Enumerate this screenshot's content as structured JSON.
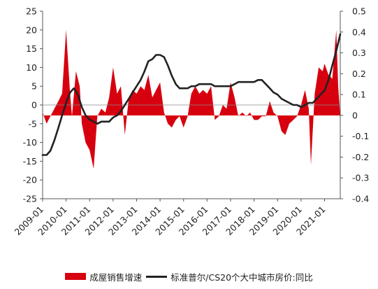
{
  "chart_data": {
    "type": "area+line",
    "title": "",
    "xlabel": "",
    "y_left_ticks": [
      "25",
      "20",
      "15",
      "10",
      "5",
      "0",
      "-5",
      "-10",
      "-15",
      "-20",
      "-25"
    ],
    "y_right_ticks": [
      "0.5",
      "0.4",
      "0.3",
      "0.2",
      "0.1",
      "0",
      "-0.1",
      "-0.2",
      "-0.3",
      "-0.4"
    ],
    "ylim_left": [
      -25,
      25
    ],
    "ylim_right": [
      -0.4,
      0.5
    ],
    "x_ticks": [
      "2009-01",
      "2010-01",
      "2011-01",
      "2012-01",
      "2013-01",
      "2014-01",
      "2015-01",
      "2016-01",
      "2017-01",
      "2018-01",
      "2019-01",
      "2020-01",
      "2021-01"
    ],
    "legend_position": "bottom",
    "colors": {
      "bar": "#d7000f",
      "line": "#222222"
    },
    "series": [
      {
        "name": "成屋销售增速",
        "axis": "left",
        "type": "area",
        "color": "#d7000f",
        "x": [
          2009.0,
          2009.17,
          2009.33,
          2009.5,
          2009.67,
          2009.83,
          2010.0,
          2010.17,
          2010.25,
          2010.42,
          2010.58,
          2010.67,
          2010.83,
          2011.0,
          2011.17,
          2011.33,
          2011.5,
          2011.67,
          2011.83,
          2012.0,
          2012.17,
          2012.33,
          2012.5,
          2012.67,
          2012.83,
          2013.0,
          2013.17,
          2013.33,
          2013.5,
          2013.67,
          2013.83,
          2014.0,
          2014.17,
          2014.33,
          2014.5,
          2014.67,
          2014.83,
          2015.0,
          2015.17,
          2015.33,
          2015.5,
          2015.67,
          2015.83,
          2016.0,
          2016.17,
          2016.33,
          2016.5,
          2016.67,
          2016.83,
          2017.0,
          2017.17,
          2017.33,
          2017.5,
          2017.67,
          2017.83,
          2018.0,
          2018.17,
          2018.33,
          2018.5,
          2018.67,
          2018.83,
          2019.0,
          2019.17,
          2019.33,
          2019.5,
          2019.67,
          2019.83,
          2020.0,
          2020.17,
          2020.33,
          2020.42,
          2020.58,
          2020.75,
          2020.92,
          2021.0,
          2021.17,
          2021.33,
          2021.5,
          2021.58,
          2021.67
        ],
        "values": [
          -2,
          -5,
          -3,
          -1,
          1,
          3,
          20,
          3,
          -3,
          9,
          5,
          -5,
          -10,
          -12,
          -17,
          -3,
          -1,
          -2,
          2,
          10,
          3,
          5,
          -8,
          2,
          4,
          3,
          5,
          4,
          8,
          2,
          4,
          6,
          -2,
          -5,
          -6,
          -4,
          -3,
          -6,
          -3,
          3,
          5,
          3,
          4,
          3,
          5,
          -4,
          -3,
          0,
          -1,
          6,
          2,
          -3,
          -2,
          -3,
          -2,
          -4,
          -4,
          -3,
          -3,
          1,
          -2,
          -3,
          -7,
          -8,
          -5,
          -4,
          -3,
          0,
          4,
          -1,
          -16,
          3,
          10,
          9,
          11,
          8,
          7,
          20,
          5,
          -3
        ],
        "baseline": -2.8
      },
      {
        "name": "标准普尔/CS20个大中城市房价:同比",
        "axis": "right",
        "type": "line",
        "color": "#222222",
        "x": [
          2009.0,
          2009.17,
          2009.33,
          2009.5,
          2009.67,
          2009.83,
          2010.0,
          2010.17,
          2010.33,
          2010.5,
          2010.67,
          2010.83,
          2011.0,
          2011.17,
          2011.33,
          2011.5,
          2011.67,
          2011.83,
          2012.0,
          2012.17,
          2012.33,
          2012.5,
          2012.67,
          2012.83,
          2013.0,
          2013.17,
          2013.33,
          2013.5,
          2013.67,
          2013.83,
          2014.0,
          2014.17,
          2014.33,
          2014.5,
          2014.67,
          2014.83,
          2015.0,
          2015.17,
          2015.33,
          2015.5,
          2015.67,
          2015.83,
          2016.0,
          2016.17,
          2016.33,
          2016.5,
          2016.67,
          2016.83,
          2017.0,
          2017.17,
          2017.33,
          2017.5,
          2017.67,
          2017.83,
          2018.0,
          2018.17,
          2018.33,
          2018.5,
          2018.67,
          2018.83,
          2019.0,
          2019.17,
          2019.33,
          2019.5,
          2019.67,
          2019.83,
          2020.0,
          2020.17,
          2020.33,
          2020.5,
          2020.67,
          2020.83,
          2021.0,
          2021.17,
          2021.33,
          2021.5,
          2021.67
        ],
        "values": [
          -0.19,
          -0.19,
          -0.17,
          -0.12,
          -0.06,
          0.0,
          0.06,
          0.11,
          0.13,
          0.1,
          0.04,
          0.0,
          -0.02,
          -0.03,
          -0.04,
          -0.03,
          -0.03,
          -0.03,
          -0.01,
          0.0,
          0.02,
          0.05,
          0.08,
          0.11,
          0.14,
          0.17,
          0.21,
          0.26,
          0.27,
          0.29,
          0.29,
          0.28,
          0.24,
          0.19,
          0.15,
          0.13,
          0.13,
          0.13,
          0.14,
          0.14,
          0.15,
          0.15,
          0.15,
          0.15,
          0.14,
          0.14,
          0.14,
          0.14,
          0.14,
          0.15,
          0.16,
          0.16,
          0.16,
          0.16,
          0.16,
          0.17,
          0.17,
          0.15,
          0.13,
          0.11,
          0.1,
          0.08,
          0.07,
          0.06,
          0.05,
          0.05,
          0.04,
          0.05,
          0.06,
          0.06,
          0.08,
          0.1,
          0.12,
          0.17,
          0.24,
          0.31,
          0.39
        ]
      }
    ]
  },
  "legend": {
    "bar_label": "成屋销售增速",
    "line_label": "标准普尔/CS20个大中城市房价:同比"
  }
}
